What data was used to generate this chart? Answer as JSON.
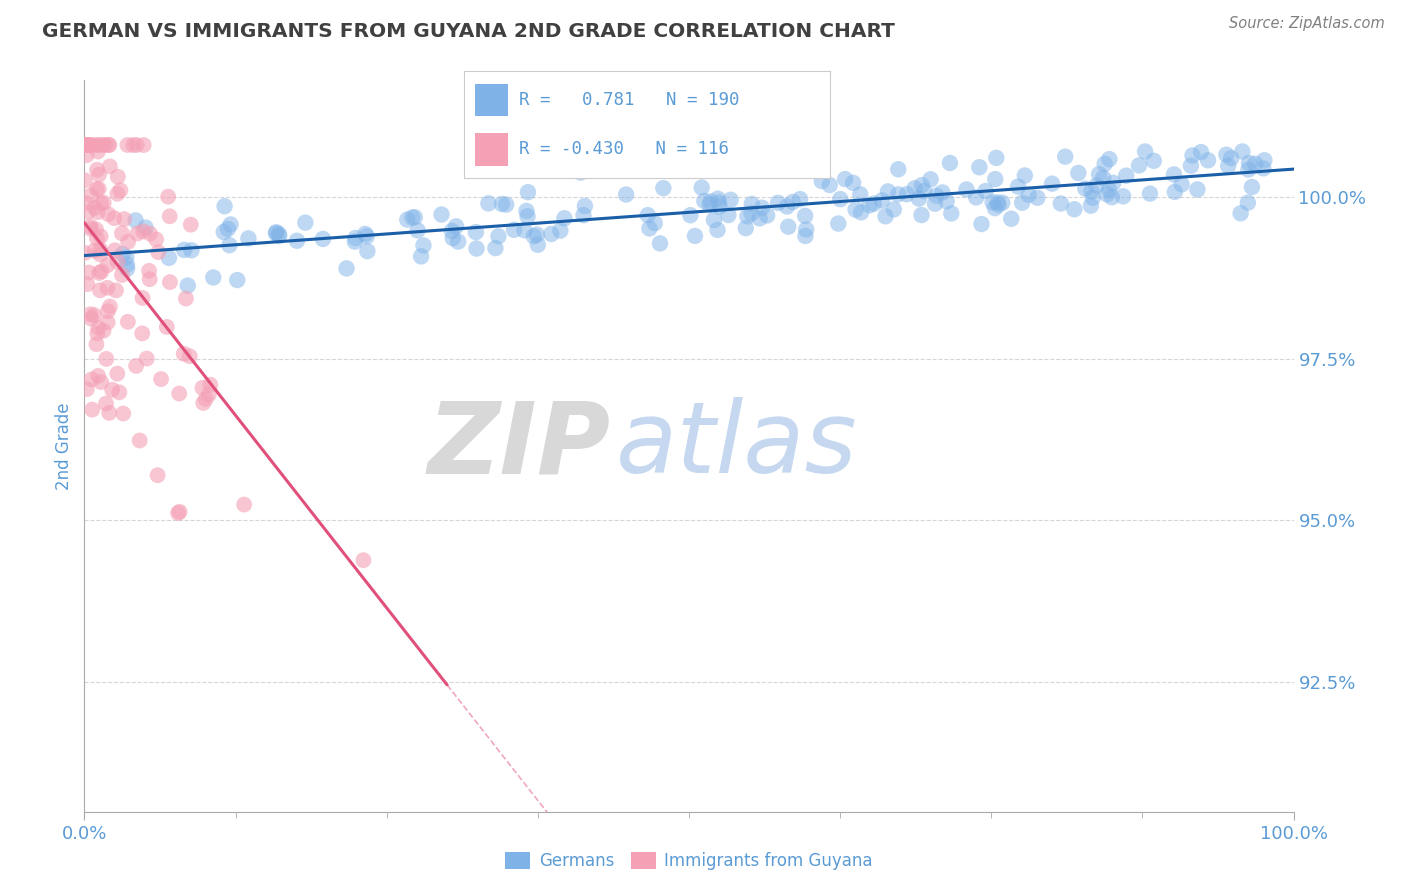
{
  "title": "GERMAN VS IMMIGRANTS FROM GUYANA 2ND GRADE CORRELATION CHART",
  "source_text": "Source: ZipAtlas.com",
  "ylabel": "2nd Grade",
  "watermark_zip": "ZIP",
  "watermark_atlas": "atlas",
  "x_min": 0.0,
  "x_max": 100.0,
  "y_min": 90.5,
  "y_max": 101.8,
  "y_ticks": [
    92.5,
    95.0,
    97.5,
    100.0
  ],
  "y_tick_labels": [
    "92.5%",
    "95.0%",
    "97.5%",
    "100.0%"
  ],
  "x_tick_labels": [
    "0.0%",
    "100.0%"
  ],
  "blue_R": 0.781,
  "blue_N": 190,
  "pink_R": -0.43,
  "pink_N": 116,
  "blue_color": "#7fb3e8",
  "pink_color": "#f4a0b5",
  "blue_line_color": "#1a5fa8",
  "pink_line_color": "#e0507a",
  "legend_blue_label": "Germans",
  "legend_pink_label": "Immigrants from Guyana",
  "title_color": "#404040",
  "axis_label_color": "#5b9bd5",
  "tick_color": "#5b9bd5",
  "grid_color": "#cccccc",
  "source_color": "#808080",
  "watermark_zip_color": "#d8d8d8",
  "watermark_atlas_color": "#c5d8f0",
  "background_color": "#ffffff",
  "blue_seed": 99,
  "pink_seed": 77
}
